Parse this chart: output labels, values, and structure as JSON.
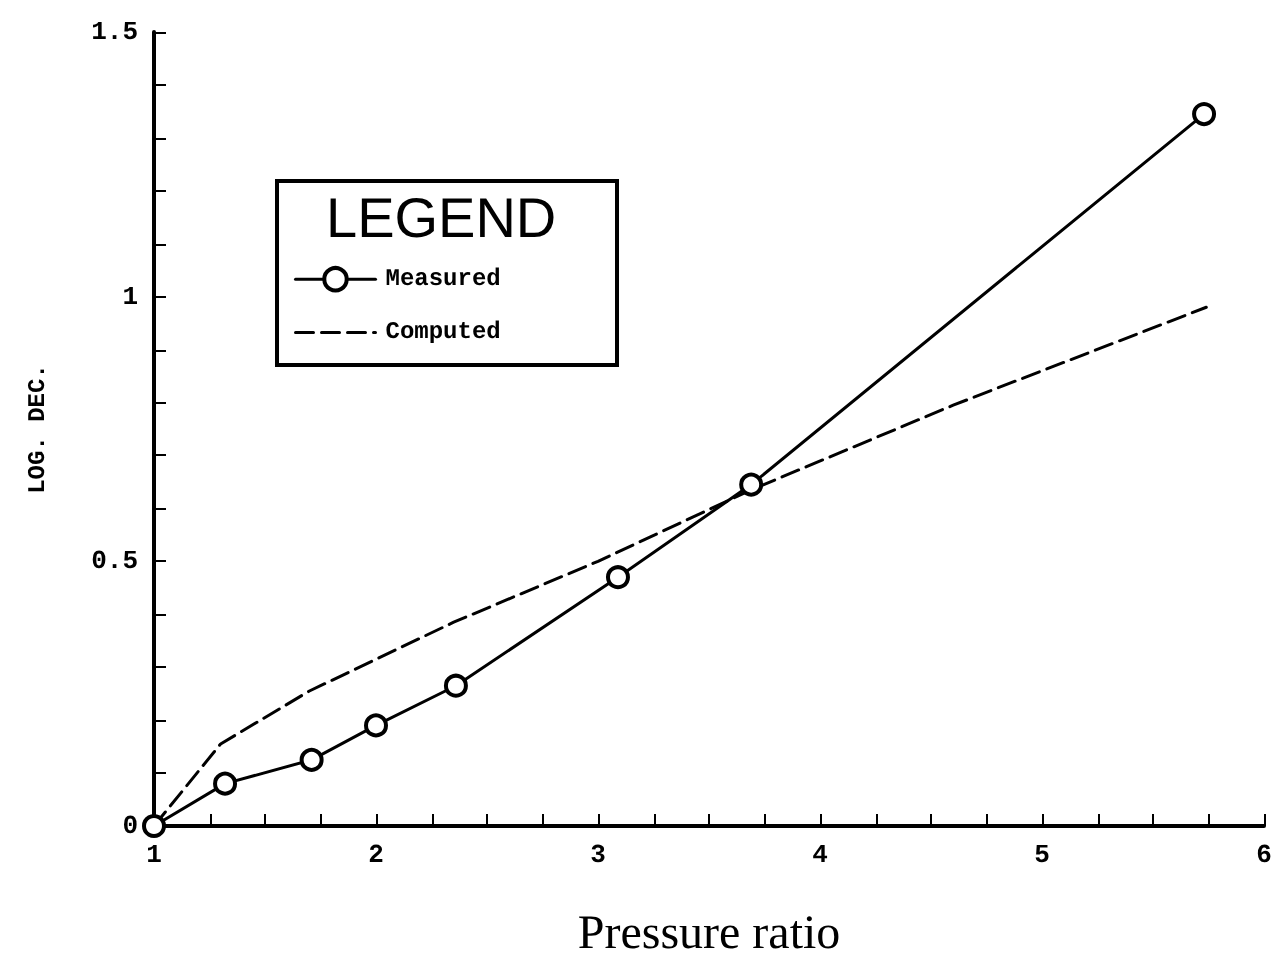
{
  "chart_data": {
    "type": "line",
    "xlabel": "Pressure ratio",
    "ylabel": "LOG. DEC.",
    "legend_title": "LEGEND",
    "legend": "top left",
    "grid": false,
    "xlim": [
      1,
      6
    ],
    "xticks": [
      1,
      {
        "value": 1.25,
        "label": null
      },
      {
        "value": 1.5,
        "label": null
      },
      {
        "value": 1.75,
        "label": null
      },
      2,
      {
        "value": 2.25,
        "label": null
      },
      {
        "value": 2.5,
        "label": null
      },
      {
        "value": 2.75,
        "label": null
      },
      3,
      {
        "value": 3.25,
        "label": null
      },
      {
        "value": 3.5,
        "label": null
      },
      {
        "value": 3.75,
        "label": null
      },
      4,
      {
        "value": 4.25,
        "label": null
      },
      {
        "value": 4.5,
        "label": null
      },
      {
        "value": 4.75,
        "label": null
      },
      5,
      {
        "value": 5.25,
        "label": null
      },
      {
        "value": 5.5,
        "label": null
      },
      {
        "value": 5.75,
        "label": null
      },
      6
    ],
    "ylim": [
      0,
      1.5
    ],
    "yticks": [
      0,
      {
        "value": 0.1,
        "label": null
      },
      {
        "value": 0.2,
        "label": null
      },
      {
        "value": 0.3,
        "label": null
      },
      {
        "value": 0.4,
        "label": null
      },
      0.5,
      {
        "value": 0.6,
        "label": null
      },
      {
        "value": 0.7,
        "label": null
      },
      {
        "value": 0.8,
        "label": null
      },
      {
        "value": 0.9,
        "label": null
      },
      1,
      {
        "value": 1.1,
        "label": null
      },
      {
        "value": 1.2,
        "label": null
      },
      {
        "value": 1.3,
        "label": null
      },
      {
        "value": 1.4,
        "label": null
      },
      1.5
    ],
    "series": [
      {
        "name": "Measured",
        "color": "#000000",
        "marker": "circle",
        "line_style": "solid",
        "x": [
          1,
          1.32,
          1.71,
          2.0,
          2.36,
          3.09,
          3.69,
          5.73
        ],
        "values": [
          0,
          0.08,
          0.125,
          0.19,
          0.265,
          0.47,
          0.645,
          1.345
        ]
      },
      {
        "name": "Computed",
        "color": "#000000",
        "marker": "none",
        "line_style": "dashed",
        "x": [
          1,
          1.3,
          1.7,
          2.35,
          3.0,
          3.69,
          4.6,
          5.74
        ],
        "values": [
          0,
          0.155,
          0.255,
          0.385,
          0.5,
          0.635,
          0.795,
          0.98
        ]
      }
    ]
  }
}
